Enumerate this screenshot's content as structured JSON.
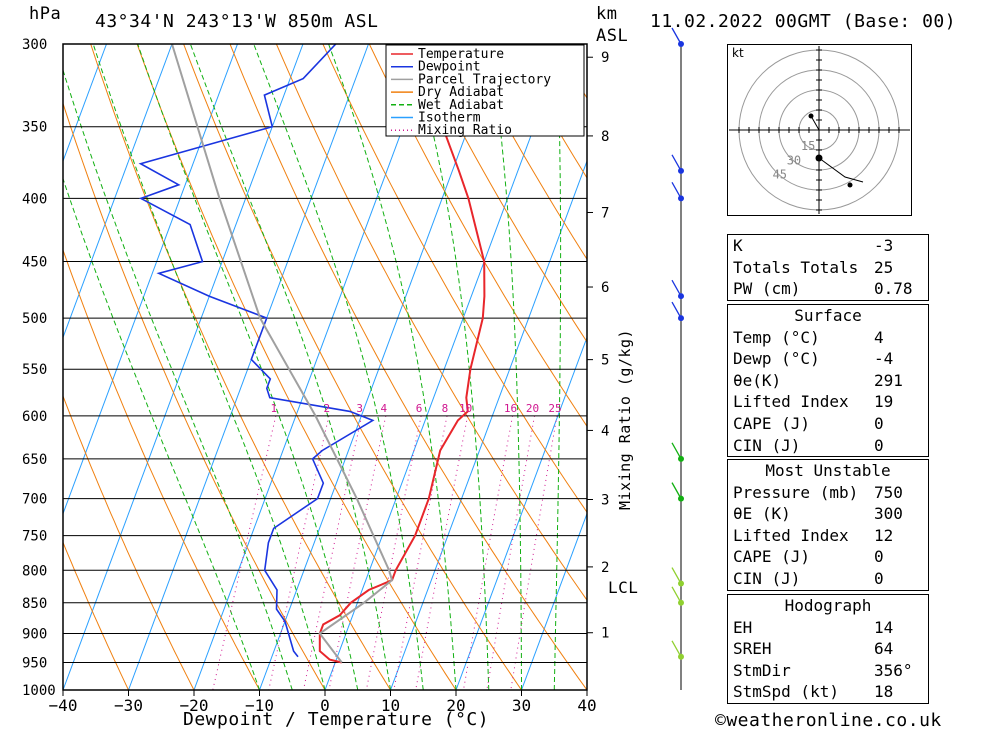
{
  "header": {
    "hpa_unit": "hPa",
    "location": "43°34'N 243°13'W 850m ASL",
    "km_unit": "km",
    "asl": "ASL",
    "datetime": "11.02.2022 00GMT (Base: 00)"
  },
  "footer": {
    "copyright": "©weatheronline.co.uk"
  },
  "chart_data": {
    "type": "line",
    "xlabel": "Dewpoint / Temperature (°C)",
    "ylabel": "Mixing Ratio (g/kg)",
    "x_ticks": [
      -40,
      -30,
      -20,
      -10,
      0,
      10,
      20,
      30,
      40
    ],
    "xlim": [
      -40,
      40
    ],
    "pressure_ticks": [
      300,
      350,
      400,
      450,
      500,
      550,
      600,
      650,
      700,
      750,
      800,
      850,
      900,
      950,
      1000
    ],
    "km_ticks": [
      1,
      2,
      3,
      4,
      5,
      6,
      7,
      8,
      9
    ],
    "mixing_ratio_labels": [
      "1",
      "2",
      "3",
      "4",
      "6",
      "8",
      "10",
      "16",
      "20",
      "25"
    ],
    "lcl_label": "LCL",
    "legend": [
      "Temperature",
      "Dewpoint",
      "Parcel Trajectory",
      "Dry Adiabat",
      "Wet Adiabat",
      "Isotherm",
      "Mixing Ratio"
    ],
    "colors": {
      "temperature": "#e8262b",
      "dewpoint": "#1a35e0",
      "parcel": "#a0a0a0",
      "dry_adiabat": "#f08010",
      "wet_adiabat": "#12b012",
      "isotherm": "#2aa0ff",
      "mixing_ratio": "#d01890"
    },
    "series": [
      {
        "name": "Temperature",
        "points": [
          [
            300,
            -24
          ],
          [
            350,
            -14
          ],
          [
            380,
            -9
          ],
          [
            400,
            -6
          ],
          [
            450,
            0
          ],
          [
            480,
            2
          ],
          [
            500,
            3
          ],
          [
            550,
            4
          ],
          [
            580,
            5
          ],
          [
            595,
            6
          ],
          [
            605,
            5
          ],
          [
            640,
            4
          ],
          [
            700,
            5
          ],
          [
            750,
            5
          ],
          [
            800,
            4
          ],
          [
            815,
            4
          ],
          [
            830,
            1
          ],
          [
            850,
            -1
          ],
          [
            870,
            -2
          ],
          [
            885,
            -4
          ],
          [
            900,
            -4
          ],
          [
            930,
            -3
          ],
          [
            945,
            -1
          ],
          [
            950,
            1
          ]
        ]
      },
      {
        "name": "Dewpoint",
        "points": [
          [
            300,
            -35
          ],
          [
            320,
            -38
          ],
          [
            330,
            -43
          ],
          [
            350,
            -40
          ],
          [
            375,
            -58
          ],
          [
            390,
            -51
          ],
          [
            400,
            -56
          ],
          [
            420,
            -47
          ],
          [
            450,
            -43
          ],
          [
            460,
            -49
          ],
          [
            480,
            -40
          ],
          [
            500,
            -30
          ],
          [
            540,
            -30
          ],
          [
            560,
            -26
          ],
          [
            570,
            -26
          ],
          [
            580,
            -25
          ],
          [
            595,
            -12
          ],
          [
            605,
            -8
          ],
          [
            640,
            -14
          ],
          [
            650,
            -15
          ],
          [
            680,
            -12
          ],
          [
            700,
            -12
          ],
          [
            740,
            -17
          ],
          [
            760,
            -17
          ],
          [
            800,
            -16
          ],
          [
            830,
            -13
          ],
          [
            860,
            -12
          ],
          [
            880,
            -10
          ],
          [
            930,
            -7
          ],
          [
            940,
            -6
          ]
        ]
      },
      {
        "name": "Parcel Trajectory",
        "points": [
          [
            300,
            -60
          ],
          [
            400,
            -44
          ],
          [
            500,
            -31
          ],
          [
            600,
            -17
          ],
          [
            700,
            -6
          ],
          [
            800,
            3
          ],
          [
            815,
            4
          ],
          [
            850,
            1
          ],
          [
            900,
            -4
          ],
          [
            950,
            1
          ]
        ]
      }
    ]
  },
  "wind_barbs": [
    {
      "pressure": 300,
      "color": "#1a35e0"
    },
    {
      "pressure": 380,
      "color": "#1a35e0"
    },
    {
      "pressure": 400,
      "color": "#1a35e0"
    },
    {
      "pressure": 480,
      "color": "#1a35e0"
    },
    {
      "pressure": 500,
      "color": "#1a35e0"
    },
    {
      "pressure": 650,
      "color": "#12b012"
    },
    {
      "pressure": 700,
      "color": "#12b012"
    },
    {
      "pressure": 820,
      "color": "#90d030"
    },
    {
      "pressure": 850,
      "color": "#90d030"
    },
    {
      "pressure": 940,
      "color": "#90d030"
    }
  ],
  "hodograph": {
    "unit": "kt",
    "rings": [
      "15",
      "30",
      "45"
    ]
  },
  "indices": {
    "rows": [
      {
        "label": "K",
        "value": "-3"
      },
      {
        "label": "Totals Totals",
        "value": "25"
      },
      {
        "label": "PW (cm)",
        "value": "0.78"
      }
    ]
  },
  "surface": {
    "title": "Surface",
    "rows": [
      {
        "label": "Temp (°C)",
        "value": "4"
      },
      {
        "label": "Dewp (°C)",
        "value": "-4"
      },
      {
        "label": "θe(K)",
        "value": "291"
      },
      {
        "label": "Lifted Index",
        "value": "19"
      },
      {
        "label": "CAPE (J)",
        "value": "0"
      },
      {
        "label": "CIN (J)",
        "value": "0"
      }
    ]
  },
  "most_unstable": {
    "title": "Most Unstable",
    "rows": [
      {
        "label": "Pressure (mb)",
        "value": "750"
      },
      {
        "label": "θE (K)",
        "value": "300"
      },
      {
        "label": "Lifted Index",
        "value": "12"
      },
      {
        "label": "CAPE (J)",
        "value": "0"
      },
      {
        "label": "CIN (J)",
        "value": "0"
      }
    ]
  },
  "hodograph_stats": {
    "title": "Hodograph",
    "rows": [
      {
        "label": "EH",
        "value": "14"
      },
      {
        "label": "SREH",
        "value": "64"
      },
      {
        "label": "StmDir",
        "value": "356°"
      },
      {
        "label": "StmSpd (kt)",
        "value": "18"
      }
    ]
  }
}
